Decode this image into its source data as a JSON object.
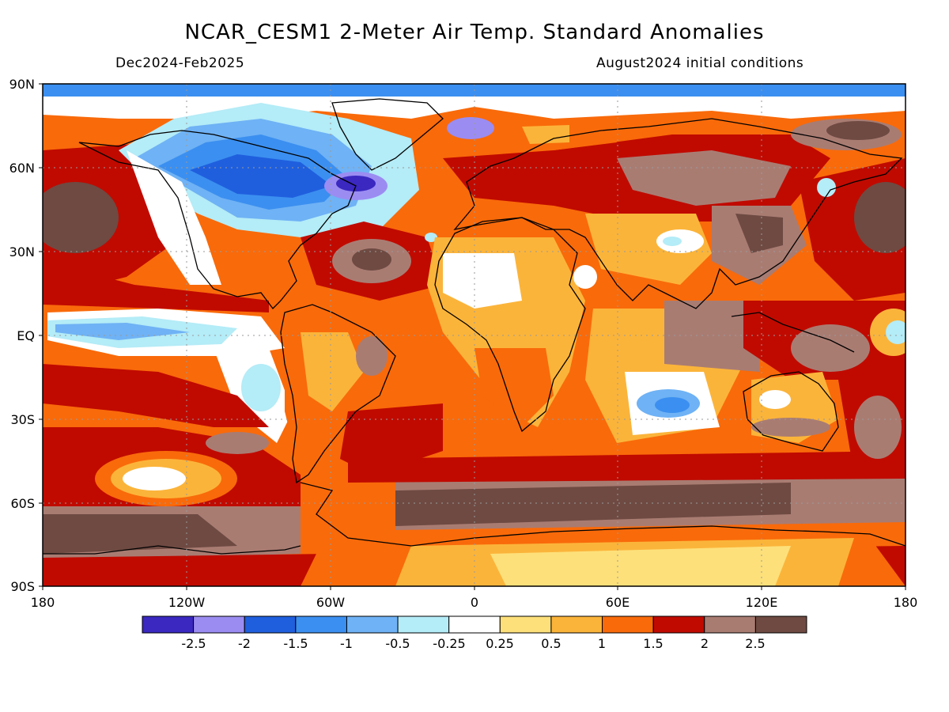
{
  "title": "NCAR_CESM1 2-Meter Air Temp. Standard Anomalies",
  "subtitle_left": "Dec2024-Feb2025",
  "subtitle_right": "August2024 initial conditions",
  "map": {
    "lat_labels": [
      "90N",
      "60N",
      "30N",
      "EQ",
      "30S",
      "60S",
      "90S"
    ],
    "lon_labels": [
      "180",
      "120W",
      "60W",
      "0",
      "60E",
      "120E",
      "180"
    ]
  },
  "colorbar": {
    "labels": [
      "-2.5",
      "-2",
      "-1.5",
      "-1",
      "-0.5",
      "-0.25",
      "0.25",
      "0.5",
      "1",
      "1.5",
      "2",
      "2.5"
    ],
    "colors": [
      "#3a28c0",
      "#9b8cf2",
      "#1f5fde",
      "#3b8ff0",
      "#6fb2f5",
      "#b4ecf7",
      "#ffffff",
      "#fde07a",
      "#fbb43a",
      "#f96a0a",
      "#c00a00",
      "#a97c72",
      "#6e4a42"
    ]
  },
  "palette": {
    "white": "#ffffff",
    "cyan": "#b4ecf7",
    "ltblue": "#6fb2f5",
    "blue": "#3b8ff0",
    "dkblue": "#1f5fde",
    "violet": "#9b8cf2",
    "purple": "#3a28c0",
    "ltyellow": "#fde07a",
    "yellow": "#fbb43a",
    "orange": "#f96a0a",
    "red": "#c00a00",
    "ltbrown": "#a97c72",
    "brown": "#6e4a42",
    "coast": "#000000"
  }
}
